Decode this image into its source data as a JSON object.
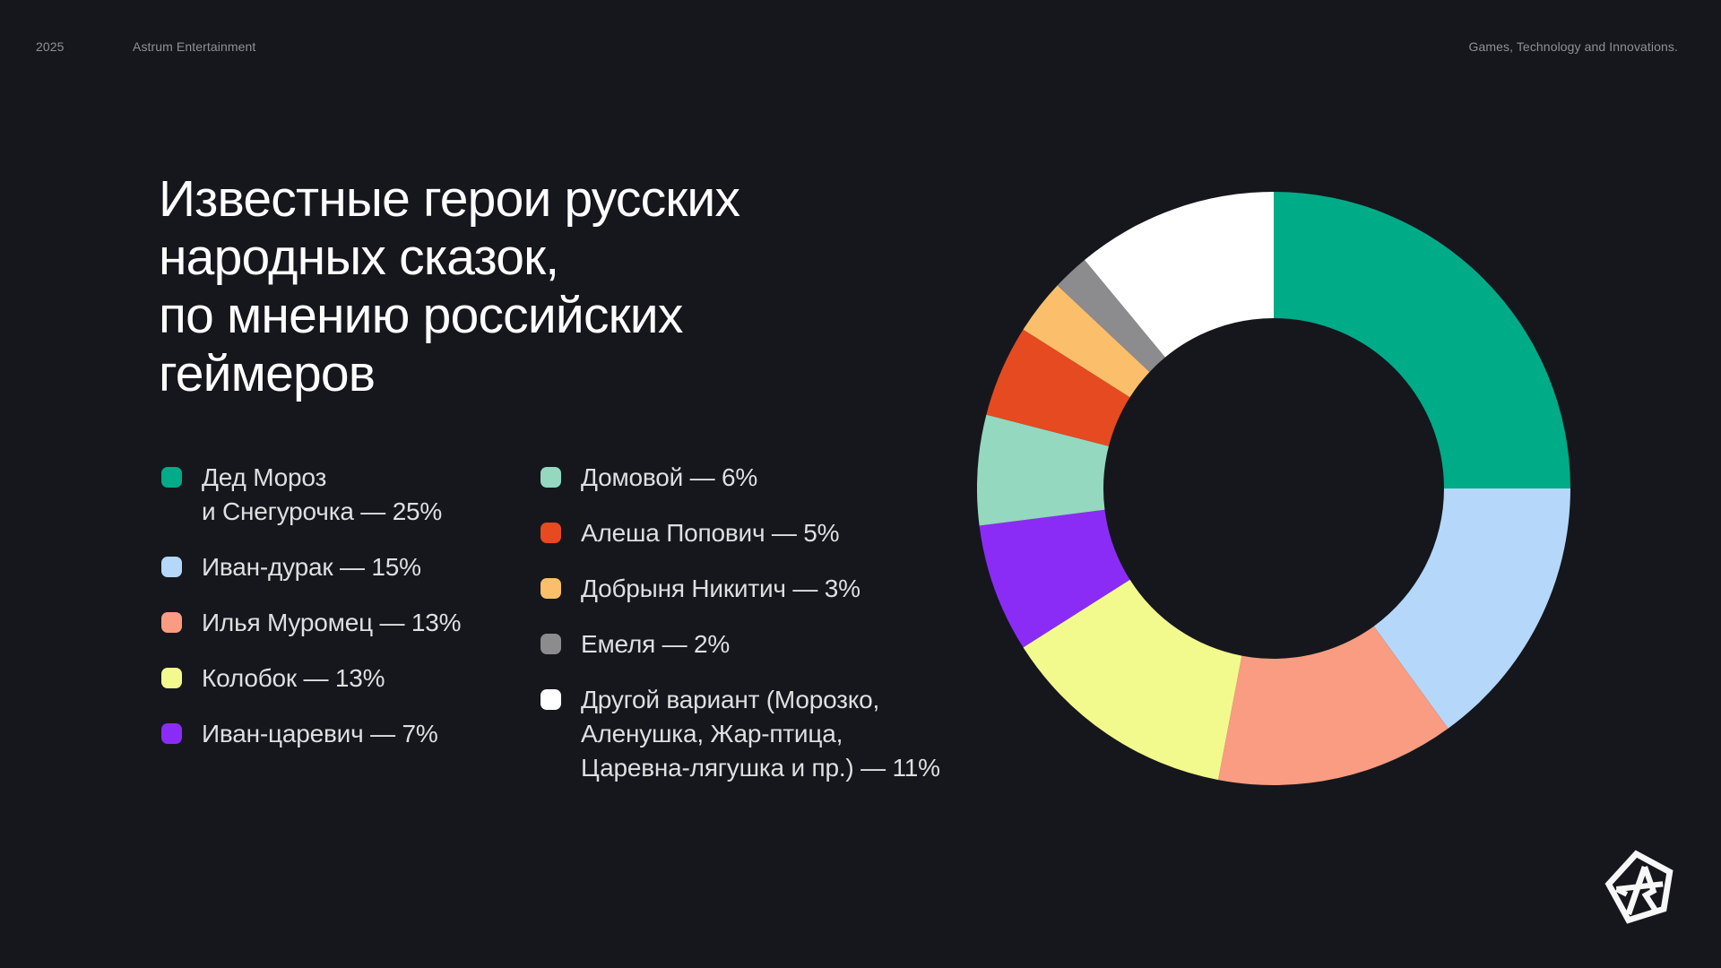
{
  "page": {
    "background": "#15171D"
  },
  "header": {
    "year": "2025",
    "brand": "Astrum Entertainment",
    "tagline": "Games, Technology and Innovations."
  },
  "title": {
    "lines": [
      "Известные герои русских",
      "народных сказок,",
      "по мнению российских",
      "геймеров"
    ]
  },
  "legend": {
    "left": [
      {
        "color": "#00AB87",
        "lines": [
          "Дед Мороз",
          "и Снегурочка — 25%"
        ]
      },
      {
        "color": "#B5D7FA",
        "lines": [
          "Иван-дурак — 15%"
        ]
      },
      {
        "color": "#F99C81",
        "lines": [
          "Илья Муромец — 13%"
        ]
      },
      {
        "color": "#F3FA8D",
        "lines": [
          "Колобок — 13%"
        ]
      },
      {
        "color": "#8B2CF6",
        "lines": [
          "Иван-царевич — 7%"
        ]
      }
    ],
    "right": [
      {
        "color": "#93D8BF",
        "lines": [
          "Домовой — 6%"
        ]
      },
      {
        "color": "#E64A20",
        "lines": [
          "Алеша Попович — 5%"
        ]
      },
      {
        "color": "#FBBE6B",
        "lines": [
          "Добрыня Никитич — 3%"
        ]
      },
      {
        "color": "#8C8C8F",
        "lines": [
          "Емеля — 2%"
        ]
      },
      {
        "color": "#FFFFFF",
        "lines": [
          "Другой вариант (Морозко,",
          "Аленушка, Жар-птица,",
          "Царевна-лягушка и пр.) — 11%"
        ]
      }
    ]
  },
  "chart_data": {
    "type": "pie",
    "subtype": "donut",
    "title": "Известные герои русских народных сказок, по мнению российских геймеров",
    "units": "%",
    "start_angle_deg": 0,
    "direction": "clockwise",
    "inner_radius_ratio": 0.574,
    "legend_position": "left",
    "grid": false,
    "slices": [
      {
        "label": "Дед Мороз и Снегурочка",
        "value": 25,
        "color": "#00AB87"
      },
      {
        "label": "Иван-дурак",
        "value": 15,
        "color": "#B5D7FA"
      },
      {
        "label": "Илья Муромец",
        "value": 13,
        "color": "#F99C81"
      },
      {
        "label": "Колобок",
        "value": 13,
        "color": "#F3FA8D"
      },
      {
        "label": "Иван-царевич",
        "value": 7,
        "color": "#8B2CF6"
      },
      {
        "label": "Домовой",
        "value": 6,
        "color": "#93D8BF"
      },
      {
        "label": "Алеша Попович",
        "value": 5,
        "color": "#E64A20"
      },
      {
        "label": "Добрыня Никитич",
        "value": 3,
        "color": "#FBBE6B"
      },
      {
        "label": "Емеля",
        "value": 2,
        "color": "#8C8C8F"
      },
      {
        "label": "Другой вариант (Морозко, Аленушка, Жар-птица, Царевна-лягушка и пр.)",
        "value": 11,
        "color": "#FFFFFF"
      }
    ]
  }
}
